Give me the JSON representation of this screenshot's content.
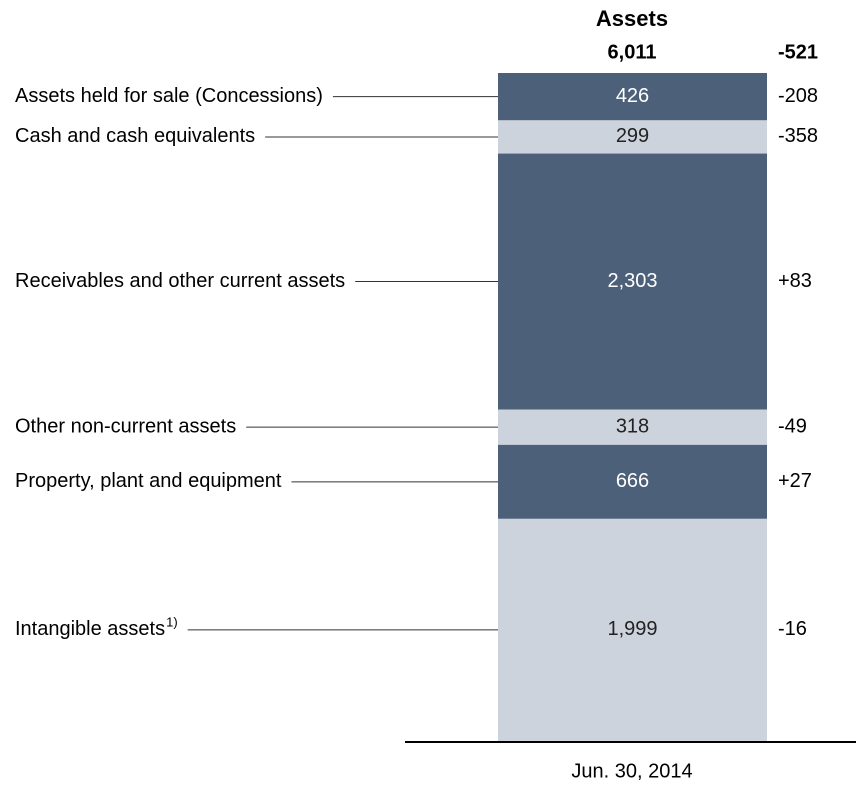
{
  "chart_data": {
    "type": "stacked_bar",
    "title": "Assets",
    "total": {
      "value": 6011,
      "label": "6,011"
    },
    "total_change": -521,
    "categories": [
      "Jun. 30, 2014"
    ],
    "series": [
      {
        "name": "Assets held for sale (Concessions)",
        "color": "#4d6079",
        "values": [
          426
        ],
        "change": -208
      },
      {
        "name": "Cash and cash equivalents",
        "color": "#cdd3dc",
        "values": [
          299
        ],
        "change": -358
      },
      {
        "name": "Receivables and other current assets",
        "color": "#4d6079",
        "values": [
          2303
        ],
        "value_labels": [
          "2,303"
        ],
        "change": {
          "value": 83,
          "label": "+83"
        }
      },
      {
        "name": "Other non-current assets",
        "color": "#cdd3dc",
        "values": [
          318
        ],
        "change": -49
      },
      {
        "name": "Property, plant and equipment",
        "color": "#4d6079",
        "values": [
          666
        ],
        "change": {
          "value": 27,
          "label": "+27"
        }
      },
      {
        "name": "Intangible assets",
        "footnote_mark": "1)",
        "color": "#cdd3dc",
        "values": [
          1999
        ],
        "value_labels": [
          "1,999"
        ],
        "change": -16
      }
    ]
  }
}
